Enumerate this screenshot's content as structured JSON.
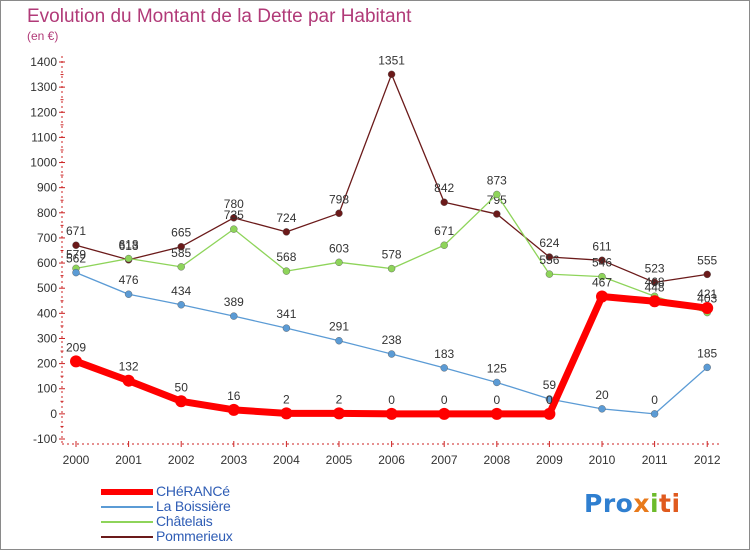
{
  "header": {
    "title": "Evolution du Montant de la Dette par Habitant",
    "subtitle": "(en €)"
  },
  "brand": {
    "part1": "Pro",
    "part2": "x",
    "part3": "i",
    "part4": "ti",
    "colors": [
      "#2f7fd0",
      "#e87a1b",
      "#6dbb2b",
      "#e05a1e"
    ]
  },
  "chart_data": {
    "type": "line",
    "title": "Evolution du Montant de la Dette par Habitant",
    "subtitle": "(en €)",
    "xlabel": "",
    "ylabel": "",
    "ylim": [
      -100,
      1400
    ],
    "yticks": [
      -100,
      0,
      100,
      200,
      300,
      400,
      500,
      600,
      700,
      800,
      900,
      1000,
      1100,
      1200,
      1300,
      1400
    ],
    "grid": false,
    "legend_position": "bottom-left",
    "categories": [
      "2000",
      "2001",
      "2002",
      "2003",
      "2004",
      "2005",
      "2006",
      "2007",
      "2008",
      "2009",
      "2010",
      "2011",
      "2012"
    ],
    "series": [
      {
        "name": "Pommerieux",
        "color": "#6b1a1a",
        "values": [
          671,
          613,
          665,
          780,
          724,
          798,
          1351,
          842,
          795,
          624,
          611,
          523,
          555
        ],
        "labels": [
          "671",
          "613",
          "665",
          "780",
          "724",
          "798",
          "1351",
          "842",
          "795",
          "624",
          "611",
          "523",
          "555"
        ]
      },
      {
        "name": "Châtelais",
        "color": "#8ed45a",
        "values": [
          579,
          618,
          585,
          735,
          568,
          603,
          578,
          671,
          873,
          556,
          546,
          468,
          403
        ],
        "labels": [
          "579",
          "618",
          "585",
          "735",
          "568",
          "603",
          "578",
          "671",
          "873",
          "556",
          "546",
          "468",
          "403"
        ]
      },
      {
        "name": "La Boissière",
        "color": "#5b9bd5",
        "values": [
          562,
          476,
          434,
          389,
          341,
          291,
          238,
          183,
          125,
          59,
          20,
          0,
          185
        ],
        "labels": [
          "562",
          "476",
          "434",
          "389",
          "341",
          "291",
          "238",
          "183",
          "125",
          "59",
          "20",
          "0",
          "185"
        ]
      },
      {
        "name": "CHéRANCé",
        "color": "#ff0000",
        "values": [
          209,
          132,
          50,
          16,
          2,
          2,
          0,
          0,
          0,
          0,
          467,
          448,
          421
        ],
        "labels": [
          "209",
          "132",
          "50",
          "16",
          "2",
          "2",
          "0",
          "0",
          "0",
          "0",
          "467",
          "448",
          "421"
        ]
      }
    ]
  },
  "legend": {
    "items": [
      {
        "label": "CHéRANCé",
        "color": "#ff0000"
      },
      {
        "label": "La Boissière",
        "color": "#5b9bd5"
      },
      {
        "label": "Châtelais",
        "color": "#8ed45a"
      },
      {
        "label": "Pommerieux",
        "color": "#6b1a1a"
      }
    ]
  }
}
